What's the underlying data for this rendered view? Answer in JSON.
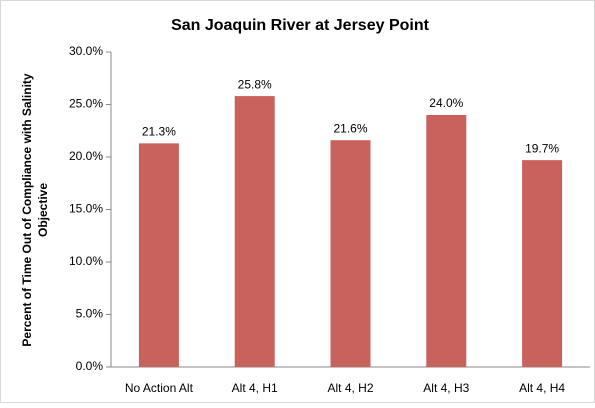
{
  "chart_data": {
    "type": "bar",
    "title": "San Joaquin River at Jersey Point",
    "ylabel": [
      "Percent of Time Out of Compliance with Salinity",
      "Objective"
    ],
    "categories": [
      "No Action Alt",
      "Alt 4, H1",
      "Alt 4, H2",
      "Alt 4, H3",
      "Alt 4, H4"
    ],
    "values": [
      21.3,
      25.8,
      21.6,
      24.0,
      19.7
    ],
    "value_labels": [
      "21.3%",
      "25.8%",
      "21.6%",
      "24.0%",
      "19.7%"
    ],
    "color": "#c9625d",
    "ylim": [
      0,
      30
    ],
    "yticks": [
      {
        "value": 0,
        "label": "0.0%"
      },
      {
        "value": 5,
        "label": "5.0%"
      },
      {
        "value": 10,
        "label": "10.0%"
      },
      {
        "value": 15,
        "label": "15.0%"
      },
      {
        "value": 20,
        "label": "20.0%"
      },
      {
        "value": 25,
        "label": "25.0%"
      },
      {
        "value": 30,
        "label": "30.0%"
      }
    ],
    "grid": false
  }
}
